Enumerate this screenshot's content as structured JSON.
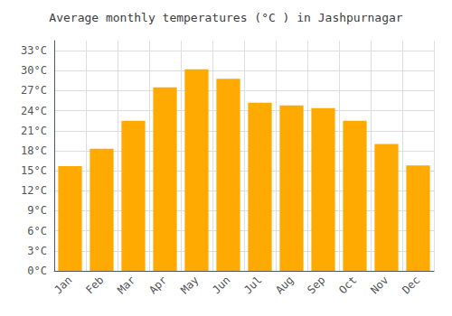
{
  "chart_data": {
    "type": "bar",
    "title": "Average monthly temperatures (°C ) in Jashpurnagar",
    "categories": [
      "Jan",
      "Feb",
      "Mar",
      "Apr",
      "May",
      "Jun",
      "Jul",
      "Aug",
      "Sep",
      "Oct",
      "Nov",
      "Dec"
    ],
    "values": [
      15.7,
      18.3,
      22.5,
      27.5,
      30.2,
      28.8,
      25.2,
      24.8,
      24.4,
      22.5,
      19.0,
      15.8
    ],
    "color": "#FFAA00",
    "ylim": [
      0,
      34.5
    ],
    "yticks": [
      {
        "value": 0,
        "label": "0°C"
      },
      {
        "value": 3,
        "label": "3°C"
      },
      {
        "value": 6,
        "label": "6°C"
      },
      {
        "value": 9,
        "label": "9°C"
      },
      {
        "value": 12,
        "label": "12°C"
      },
      {
        "value": 15,
        "label": "15°C"
      },
      {
        "value": 18,
        "label": "18°C"
      },
      {
        "value": 21,
        "label": "21°C"
      },
      {
        "value": 24,
        "label": "24°C"
      },
      {
        "value": 27,
        "label": "27°C"
      },
      {
        "value": 30,
        "label": "30°C"
      },
      {
        "value": 33,
        "label": "33°C"
      }
    ],
    "grid": true
  }
}
